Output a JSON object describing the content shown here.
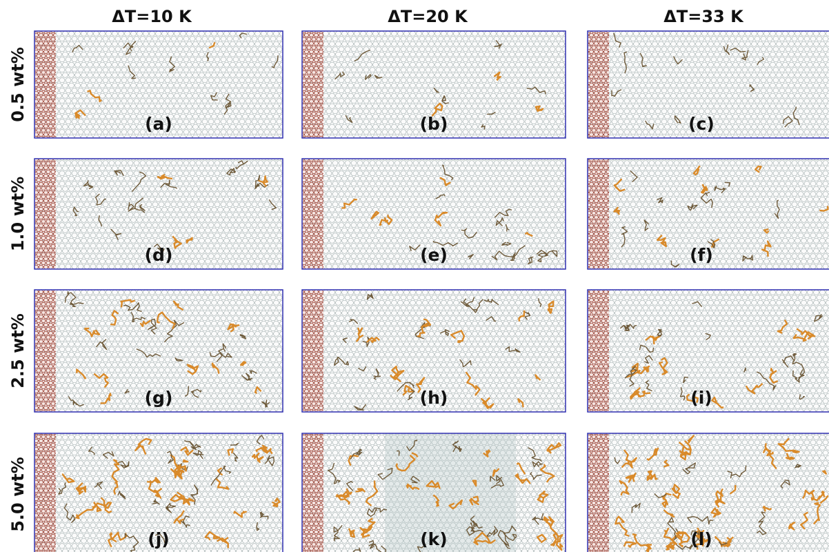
{
  "columns": [
    "ΔT=10 K",
    "ΔT=20 K",
    "ΔT=33 K"
  ],
  "rows": [
    {
      "label": "0.5 wt%",
      "panels": [
        "(a)",
        "(b)",
        "(c)"
      ]
    },
    {
      "label": "1.0 wt%",
      "panels": [
        "(d)",
        "(e)",
        "(f)"
      ]
    },
    {
      "label": "2.5 wt%",
      "panels": [
        "(g)",
        "(h)",
        "(i)"
      ]
    },
    {
      "label": "5.0 wt%",
      "panels": [
        "(j)",
        "(k)",
        "(l)"
      ]
    }
  ]
}
